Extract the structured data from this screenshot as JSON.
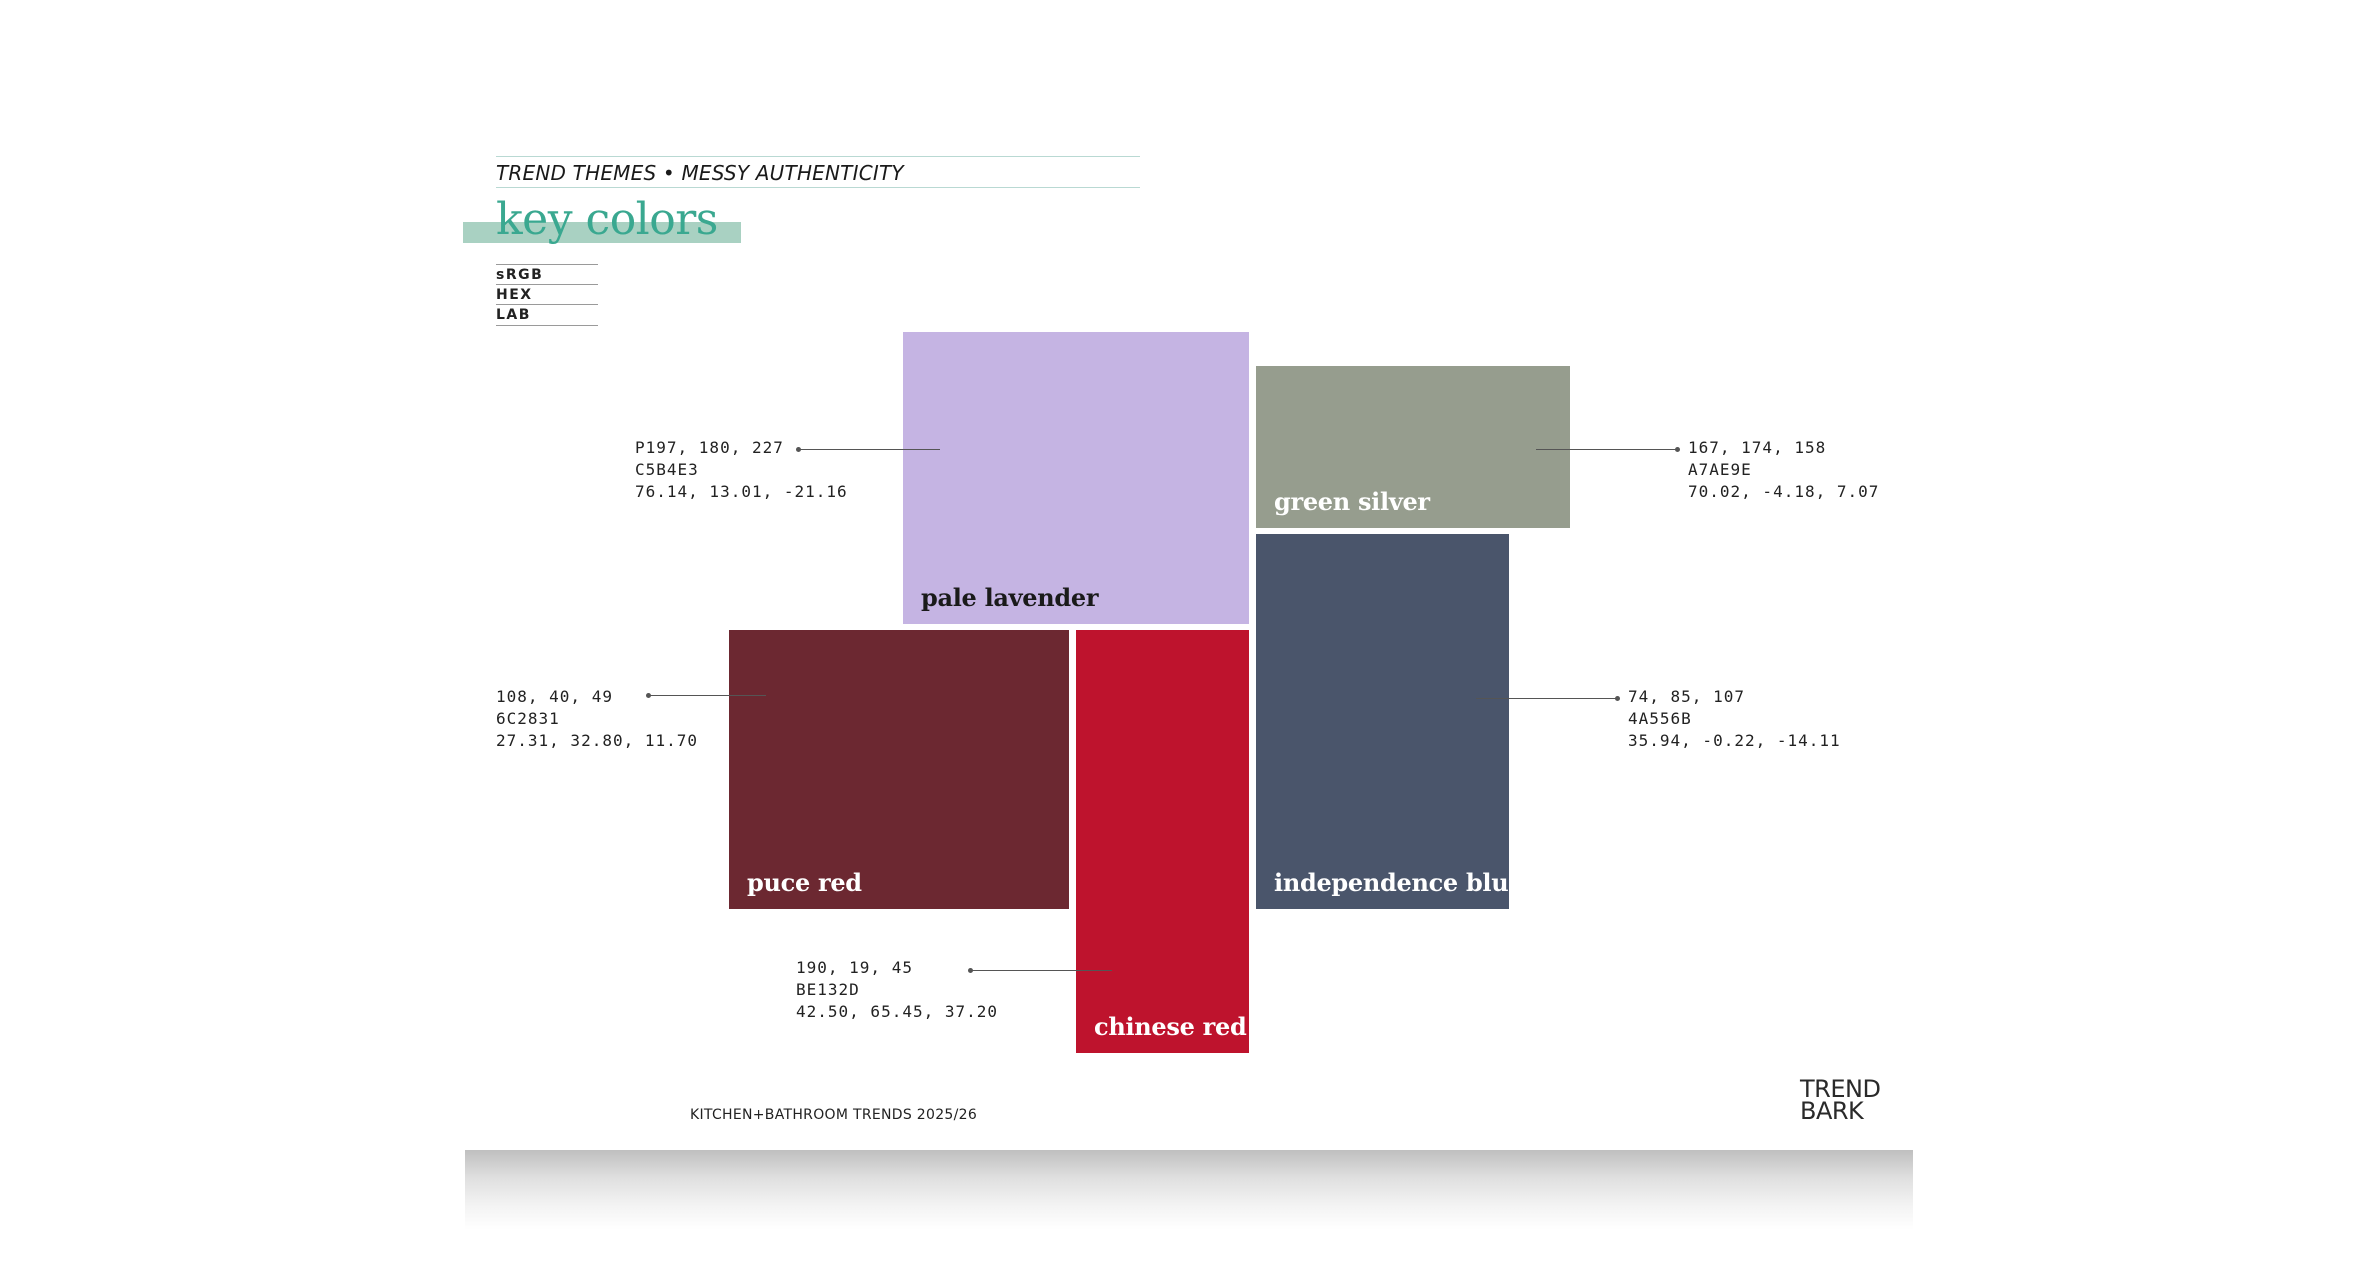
{
  "header": {
    "theme_line": "TREND THEMES • MESSY AUTHENTICITY",
    "title": "key colors"
  },
  "legend": {
    "items": [
      "sRGB",
      "HEX",
      "LAB"
    ]
  },
  "swatches": {
    "pale_lavender": {
      "name": "pale lavender",
      "color": "#C5B4E3",
      "srgb": "P197, 180, 227",
      "hex": "C5B4E3",
      "lab": "76.14, 13.01, -21.16"
    },
    "green_silver": {
      "name": "green silver",
      "color": "#A7AE9E",
      "srgb": "167, 174, 158",
      "hex": "A7AE9E",
      "lab": "70.02, -4.18, 7.07"
    },
    "puce_red": {
      "name": "puce red",
      "color": "#6C2831",
      "srgb": "108, 40, 49",
      "hex": "6C2831",
      "lab": "27.31, 32.80, 11.70"
    },
    "chinese_red": {
      "name": "chinese red",
      "color": "#BE132D",
      "srgb": "190, 19, 45",
      "hex": "BE132D",
      "lab": "42.50, 65.45, 37.20"
    },
    "independence_blue": {
      "name": "independence blue",
      "color": "#4A556B",
      "srgb": "74, 85, 107",
      "hex": "4A556B",
      "lab": "35.94, -0.22, -14.11"
    }
  },
  "footer": {
    "text": "KITCHEN+BATHROOM TRENDS 2025/26",
    "logo_line1": "TREND",
    "logo_line2": "BARK"
  }
}
